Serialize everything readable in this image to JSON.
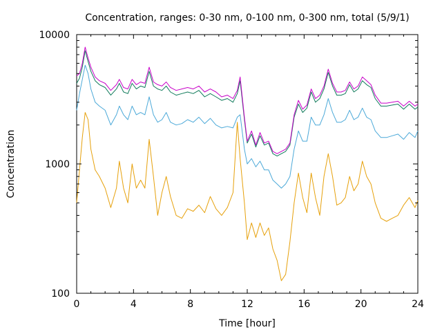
{
  "chart_data": {
    "type": "line",
    "title": "Concentration, ranges: 0-30 nm, 0-100 nm, 0-300 nm, total (5/9/1)",
    "xlabel": "Time [hour]",
    "ylabel": "Concentration",
    "xlim": [
      0,
      24
    ],
    "ylim": [
      100,
      10000
    ],
    "yscale": "log",
    "grid": false,
    "x_ticks": [
      0,
      4,
      8,
      12,
      16,
      20,
      24
    ],
    "x_tick_labels": [
      "0",
      "4",
      "8",
      "12",
      "16",
      "20",
      "24"
    ],
    "y_ticks": [
      100,
      1000,
      10000
    ],
    "y_tick_labels": [
      "100",
      "1000",
      "10000"
    ],
    "x": [
      0,
      0.2,
      0.4,
      0.6,
      0.8,
      1.0,
      1.3,
      1.6,
      2.0,
      2.4,
      2.8,
      3.0,
      3.3,
      3.6,
      3.9,
      4.2,
      4.5,
      4.8,
      5.1,
      5.4,
      5.7,
      6.0,
      6.3,
      6.6,
      7.0,
      7.4,
      7.8,
      8.2,
      8.6,
      9.0,
      9.4,
      9.8,
      10.2,
      10.6,
      11.0,
      11.3,
      11.5,
      11.8,
      12.0,
      12.3,
      12.6,
      12.9,
      13.2,
      13.5,
      13.8,
      14.1,
      14.4,
      14.7,
      15.0,
      15.3,
      15.6,
      15.9,
      16.2,
      16.5,
      16.8,
      17.1,
      17.4,
      17.7,
      18.0,
      18.3,
      18.6,
      18.9,
      19.2,
      19.5,
      19.8,
      20.1,
      20.4,
      20.7,
      21.0,
      21.4,
      21.8,
      22.2,
      22.6,
      23.0,
      23.4,
      23.8,
      24.0
    ],
    "series": [
      {
        "color": "#e6a00a",
        "values": [
          500,
          900,
          1600,
          2500,
          2200,
          1300,
          900,
          800,
          650,
          460,
          650,
          1050,
          650,
          500,
          1000,
          650,
          750,
          650,
          1550,
          800,
          400,
          600,
          800,
          560,
          400,
          380,
          450,
          430,
          480,
          420,
          560,
          450,
          400,
          460,
          600,
          2100,
          1100,
          500,
          260,
          350,
          270,
          350,
          280,
          320,
          220,
          180,
          125,
          140,
          250,
          500,
          850,
          550,
          420,
          850,
          550,
          400,
          800,
          1200,
          800,
          480,
          500,
          550,
          800,
          620,
          700,
          1050,
          800,
          700,
          500,
          380,
          360,
          380,
          400,
          480,
          550,
          460,
          520
        ]
      },
      {
        "color": "#4aa8d8",
        "values": [
          2600,
          3500,
          4500,
          5800,
          5000,
          3800,
          3000,
          2800,
          2600,
          2000,
          2400,
          2800,
          2400,
          2200,
          2800,
          2400,
          2500,
          2400,
          3300,
          2400,
          2100,
          2200,
          2500,
          2100,
          2000,
          2050,
          2200,
          2100,
          2300,
          2050,
          2250,
          2000,
          1900,
          1950,
          1900,
          2300,
          2400,
          1300,
          1000,
          1100,
          950,
          1050,
          900,
          900,
          750,
          700,
          650,
          700,
          800,
          1300,
          1800,
          1500,
          1500,
          2300,
          2000,
          2000,
          2400,
          3200,
          2500,
          2100,
          2100,
          2200,
          2600,
          2200,
          2300,
          2700,
          2300,
          2200,
          1800,
          1600,
          1600,
          1650,
          1700,
          1550,
          1750,
          1600,
          1800
        ]
      },
      {
        "color": "#0f7a5a",
        "values": [
          4200,
          4600,
          5600,
          7500,
          6200,
          5200,
          4400,
          4100,
          3900,
          3400,
          3800,
          4200,
          3600,
          3500,
          4200,
          3800,
          4000,
          3900,
          5200,
          4000,
          3800,
          3700,
          4000,
          3600,
          3400,
          3500,
          3600,
          3500,
          3700,
          3300,
          3500,
          3300,
          3100,
          3200,
          3000,
          3500,
          4400,
          2200,
          1450,
          1700,
          1350,
          1650,
          1400,
          1450,
          1200,
          1150,
          1200,
          1250,
          1400,
          2300,
          2900,
          2500,
          2700,
          3600,
          3000,
          3200,
          3800,
          5100,
          4000,
          3400,
          3400,
          3500,
          4100,
          3600,
          3800,
          4400,
          4100,
          3900,
          3200,
          2800,
          2800,
          2850,
          2900,
          2650,
          2900,
          2650,
          2750
        ]
      },
      {
        "color": "#c800c8",
        "values": [
          4800,
          5000,
          6000,
          8000,
          6600,
          5600,
          4700,
          4400,
          4200,
          3700,
          4100,
          4500,
          3900,
          3800,
          4500,
          4100,
          4300,
          4200,
          5600,
          4300,
          4100,
          4000,
          4300,
          3900,
          3700,
          3800,
          3900,
          3800,
          4000,
          3600,
          3800,
          3600,
          3300,
          3400,
          3200,
          3700,
          4700,
          2300,
          1500,
          1800,
          1400,
          1750,
          1450,
          1500,
          1250,
          1200,
          1250,
          1300,
          1450,
          2400,
          3100,
          2650,
          2850,
          3800,
          3200,
          3400,
          4000,
          5400,
          4200,
          3600,
          3600,
          3700,
          4300,
          3800,
          4000,
          4700,
          4400,
          4100,
          3400,
          2950,
          2950,
          3000,
          3050,
          2800,
          3050,
          2800,
          2900
        ]
      }
    ]
  }
}
